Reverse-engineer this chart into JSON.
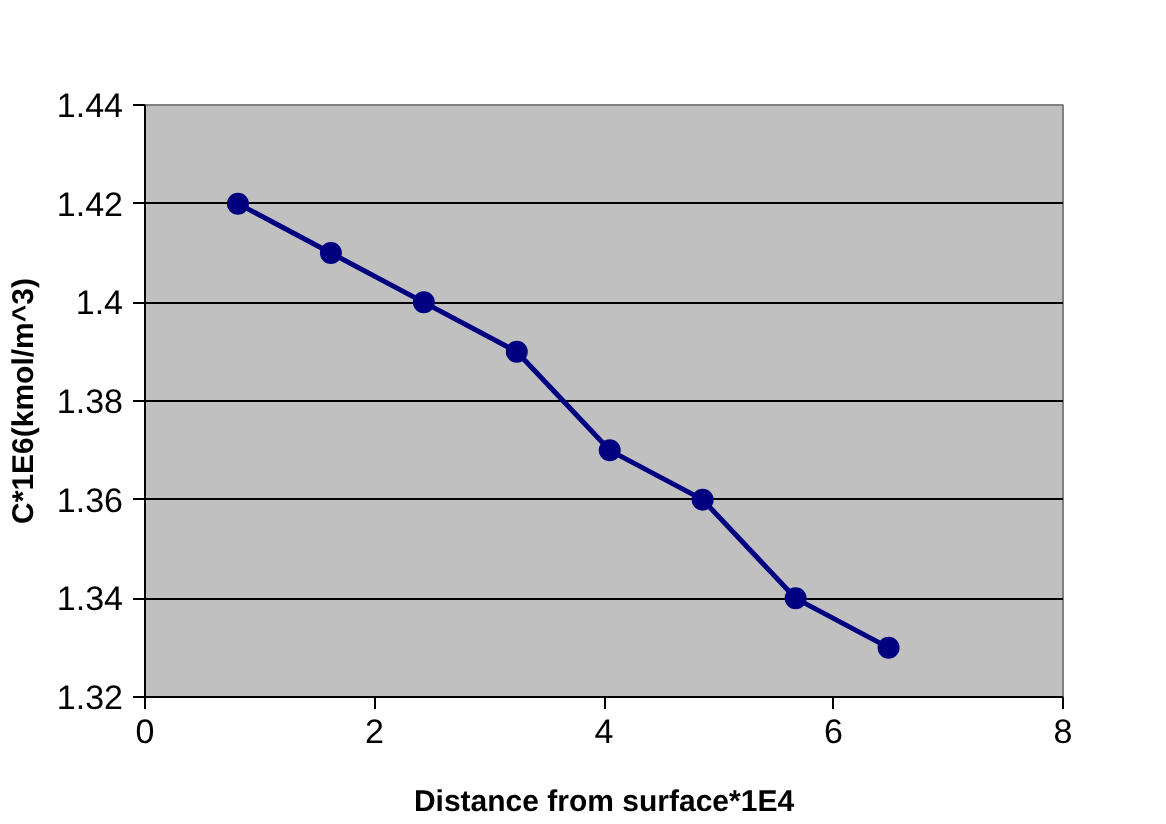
{
  "chart_data": {
    "type": "line",
    "xlabel": "Distance from surface*1E4",
    "ylabel": "C*1E6(kmol/m^3)",
    "x": [
      0.81,
      1.62,
      2.43,
      3.24,
      4.05,
      4.86,
      5.67,
      6.48
    ],
    "series": [
      {
        "color": "#000080",
        "values": [
          1.42,
          1.41,
          1.4,
          1.39,
          1.37,
          1.36,
          1.34,
          1.33
        ]
      }
    ],
    "xlim": [
      0,
      8
    ],
    "xticks": [
      0,
      2,
      4,
      6,
      8
    ],
    "ylim": [
      1.32,
      1.44
    ],
    "yticks": [
      {
        "value": 1.32,
        "label": "1.32"
      },
      {
        "value": 1.34,
        "label": "1.34"
      },
      {
        "value": 1.36,
        "label": "1.36"
      },
      {
        "value": 1.38,
        "label": "1.38"
      },
      {
        "value": 1.4,
        "label": "1.4"
      },
      {
        "value": 1.42,
        "label": "1.42"
      },
      {
        "value": 1.44,
        "label": "1.44"
      }
    ],
    "grid": "y",
    "marker": "circle",
    "line_style": "solid"
  }
}
